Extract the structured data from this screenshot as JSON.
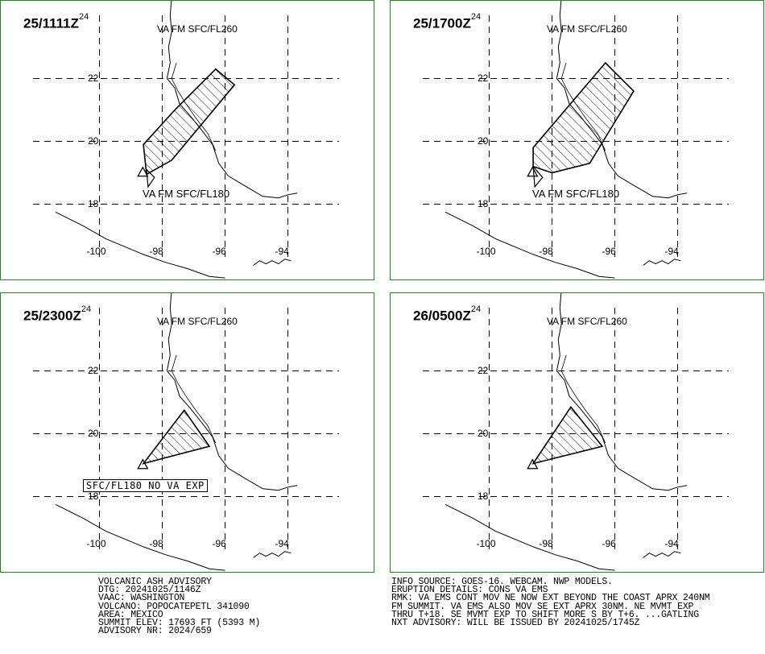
{
  "panels": [
    {
      "time": "25/1111Z",
      "time_sup": "24",
      "upper_label": "VA FM SFC/FL260",
      "lower_label": "VA FM SFC/FL180",
      "lower_boxed": false,
      "cloud": [
        [
          -96.3,
          22.3
        ],
        [
          -95.7,
          21.8
        ],
        [
          -97.7,
          19.4
        ],
        [
          -98.5,
          18.95
        ],
        [
          -98.6,
          19.9
        ],
        [
          -97.6,
          21.0
        ]
      ],
      "lower_cloud": [
        [
          -98.5,
          19.1
        ],
        [
          -98.25,
          18.85
        ],
        [
          -98.45,
          18.55
        ]
      ]
    },
    {
      "time": "25/1700Z",
      "time_sup": "24",
      "upper_label": "VA FM SFC/FL260",
      "lower_label": "VA FM SFC/FL180",
      "lower_boxed": false,
      "cloud": [
        [
          -96.3,
          22.5
        ],
        [
          -95.4,
          21.6
        ],
        [
          -96.8,
          19.3
        ],
        [
          -98.0,
          19.0
        ],
        [
          -98.6,
          19.2
        ],
        [
          -98.6,
          19.8
        ]
      ],
      "lower_cloud": [
        [
          -98.6,
          19.2
        ],
        [
          -98.3,
          18.85
        ],
        [
          -98.55,
          18.55
        ]
      ]
    },
    {
      "time": "25/2300Z",
      "time_sup": "24",
      "upper_label": "VA FM SFC/FL260",
      "lower_label": "SFC/FL180 NO VA EXP",
      "lower_boxed": true,
      "cloud": [
        [
          -97.3,
          20.75
        ],
        [
          -96.5,
          19.6
        ],
        [
          -98.6,
          19.05
        ]
      ],
      "lower_cloud": []
    },
    {
      "time": "26/0500Z",
      "time_sup": "24",
      "upper_label": "VA FM SFC/FL260",
      "lower_label": "",
      "lower_boxed": false,
      "cloud": [
        [
          -97.4,
          20.85
        ],
        [
          -96.4,
          19.6
        ],
        [
          -98.6,
          19.05
        ]
      ],
      "lower_cloud": []
    }
  ],
  "map": {
    "lat_ticks": [
      "22",
      "20",
      "18"
    ],
    "lon_ticks": [
      "-100",
      "-98",
      "-96",
      "-94"
    ],
    "lat_values": [
      22,
      20,
      18
    ],
    "lon_values": [
      -100,
      -98,
      -96,
      -94
    ],
    "volcano": [
      -98.62,
      19.02
    ],
    "gulf_coast": [
      [
        -97.7,
        24.6
      ],
      [
        -97.75,
        24.0
      ],
      [
        -97.7,
        23.5
      ],
      [
        -97.8,
        23.0
      ],
      [
        -97.75,
        22.5
      ],
      [
        -97.85,
        22.0
      ],
      [
        -97.6,
        21.7
      ],
      [
        -97.45,
        21.2
      ],
      [
        -97.1,
        20.8
      ],
      [
        -96.7,
        20.3
      ],
      [
        -96.4,
        19.9
      ],
      [
        -96.2,
        19.3
      ],
      [
        -95.9,
        18.9
      ],
      [
        -95.4,
        18.6
      ],
      [
        -94.8,
        18.25
      ],
      [
        -94.3,
        18.2
      ],
      [
        -94.0,
        18.3
      ],
      [
        -93.7,
        18.35
      ]
    ],
    "inner_coast": [
      [
        -97.55,
        22.5
      ],
      [
        -97.7,
        22.0
      ],
      [
        -97.5,
        21.6
      ],
      [
        -97.25,
        21.2
      ],
      [
        -96.9,
        20.7
      ],
      [
        -96.55,
        20.25
      ],
      [
        -96.3,
        19.7
      ]
    ],
    "pacific_coast": [
      [
        -101.4,
        17.75
      ],
      [
        -100.5,
        17.3
      ],
      [
        -99.8,
        16.9
      ],
      [
        -99.2,
        16.65
      ],
      [
        -98.6,
        16.4
      ],
      [
        -97.9,
        16.15
      ],
      [
        -97.2,
        15.95
      ],
      [
        -96.5,
        15.7
      ],
      [
        -96.0,
        15.65
      ]
    ],
    "isthmus_coast": [
      [
        -95.1,
        16.05
      ],
      [
        -94.9,
        16.2
      ],
      [
        -94.7,
        16.1
      ],
      [
        -94.5,
        16.2
      ],
      [
        -94.3,
        16.1
      ],
      [
        -94.1,
        16.25
      ],
      [
        -93.9,
        16.2
      ]
    ]
  },
  "advisory": [
    "VOLCANIC ASH ADVISORY",
    "DTG: 20241025/1146Z",
    "VAAC: WASHINGTON",
    "VOLCANO: POPOCATEPETL 341090",
    "AREA: MEXICO",
    "SUMMIT ELEV: 17693 FT (5393 M)",
    "ADVISORY NR: 2024/659"
  ],
  "info": [
    "INFO SOURCE: GOES-16. WEBCAM. NWP MODELS.",
    "ERUPTION DETAILS: CONS VA EMS",
    "RMK: VA EMS CONT MOV NE NOW EXT BEYOND THE COAST APRX 240NM",
    "FM SUMMIT. VA EMS ALSO MOV SE EXT APRX 30NM. NE MVMT EXP",
    "THRU T+18. SE MVMT EXP TO SHIFT MORE S BY T+6. ...GATLING",
    "NXT ADVISORY: WILL BE ISSUED BY 20241025/1745Z"
  ],
  "colors": {
    "panel_border": "#1a8a1a",
    "ink": "#000000"
  }
}
